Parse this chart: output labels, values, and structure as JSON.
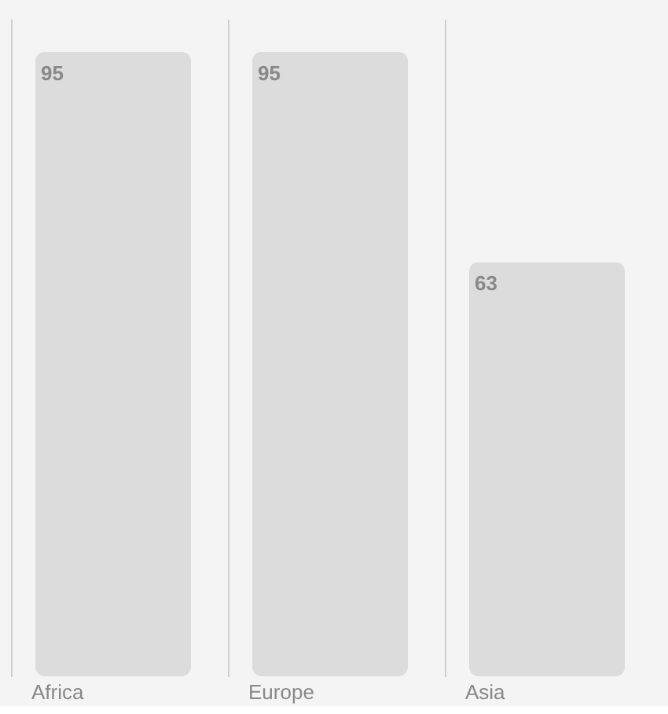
{
  "chart_data": {
    "type": "bar",
    "categories": [
      "Africa",
      "Europe",
      "Asia"
    ],
    "values": [
      95,
      95,
      63
    ],
    "color": "#dcdcdc",
    "data_labels": true,
    "grid": "x",
    "tick_labels": "x"
  }
}
